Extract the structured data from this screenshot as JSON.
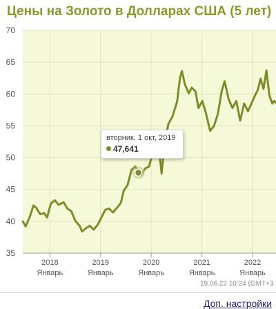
{
  "chart_data": {
    "type": "line",
    "title": "Цены на Золото в Долларах США (5 лет)",
    "y_ticks": [
      35,
      40,
      45,
      50,
      55,
      60,
      65,
      70
    ],
    "ylim": [
      35,
      70
    ],
    "x_ticks": [
      {
        "year": "2018",
        "month": "Январь",
        "date": "2018-01-01"
      },
      {
        "year": "2019",
        "month": "Январь",
        "date": "2019-01-01"
      },
      {
        "year": "2020",
        "month": "Январь",
        "date": "2020-01-01"
      },
      {
        "year": "2021",
        "month": "Январь",
        "date": "2021-01-01"
      },
      {
        "year": "2022",
        "month": "Январь",
        "date": "2022-01-01"
      }
    ],
    "xlim": [
      "2017-06-19",
      "2022-06-19"
    ],
    "grid": true,
    "line_color": "#7f8c2a",
    "plot_background": "#f6f9d8",
    "series": [
      {
        "points": [
          [
            "2017-06-19",
            40.0
          ],
          [
            "2017-07-10",
            39.2
          ],
          [
            "2017-08-07",
            40.6
          ],
          [
            "2017-09-04",
            42.5
          ],
          [
            "2017-09-25",
            42.1
          ],
          [
            "2017-10-23",
            41.1
          ],
          [
            "2017-11-20",
            41.3
          ],
          [
            "2017-12-11",
            40.6
          ],
          [
            "2018-01-08",
            42.8
          ],
          [
            "2018-02-05",
            43.3
          ],
          [
            "2018-03-05",
            42.6
          ],
          [
            "2018-04-09",
            43.0
          ],
          [
            "2018-05-07",
            42.0
          ],
          [
            "2018-06-04",
            41.6
          ],
          [
            "2018-07-02",
            40.1
          ],
          [
            "2018-08-06",
            39.2
          ],
          [
            "2018-08-20",
            38.4
          ],
          [
            "2018-09-17",
            38.9
          ],
          [
            "2018-10-15",
            39.3
          ],
          [
            "2018-11-12",
            38.7
          ],
          [
            "2018-12-10",
            39.4
          ],
          [
            "2019-01-07",
            40.6
          ],
          [
            "2019-02-04",
            41.8
          ],
          [
            "2019-03-04",
            42.0
          ],
          [
            "2019-04-01",
            41.4
          ],
          [
            "2019-05-06",
            42.3
          ],
          [
            "2019-05-27",
            42.9
          ],
          [
            "2019-06-17",
            44.8
          ],
          [
            "2019-07-15",
            45.7
          ],
          [
            "2019-08-12",
            48.1
          ],
          [
            "2019-09-09",
            48.6
          ],
          [
            "2019-10-01",
            47.641
          ],
          [
            "2019-10-21",
            47.2
          ],
          [
            "2019-11-18",
            48.3
          ],
          [
            "2019-12-16",
            48.6
          ],
          [
            "2020-01-13",
            50.8
          ],
          [
            "2020-02-10",
            51.3
          ],
          [
            "2020-02-24",
            51.9
          ],
          [
            "2020-03-16",
            47.5
          ],
          [
            "2020-04-06",
            52.1
          ],
          [
            "2020-05-04",
            55.3
          ],
          [
            "2020-06-01",
            56.4
          ],
          [
            "2020-07-06",
            58.8
          ],
          [
            "2020-07-27",
            62.6
          ],
          [
            "2020-08-10",
            63.6
          ],
          [
            "2020-08-31",
            61.5
          ],
          [
            "2020-09-28",
            60.1
          ],
          [
            "2020-10-19",
            61.0
          ],
          [
            "2020-11-16",
            60.4
          ],
          [
            "2020-12-07",
            57.8
          ],
          [
            "2021-01-04",
            58.9
          ],
          [
            "2021-02-01",
            56.8
          ],
          [
            "2021-03-01",
            54.2
          ],
          [
            "2021-03-29",
            55.0
          ],
          [
            "2021-04-26",
            56.9
          ],
          [
            "2021-05-24",
            60.5
          ],
          [
            "2021-06-14",
            62.0
          ],
          [
            "2021-07-12",
            59.2
          ],
          [
            "2021-08-09",
            57.8
          ],
          [
            "2021-09-06",
            58.9
          ],
          [
            "2021-10-04",
            55.8
          ],
          [
            "2021-11-01",
            58.5
          ],
          [
            "2021-11-29",
            57.3
          ],
          [
            "2021-12-20",
            58.3
          ],
          [
            "2022-01-17",
            59.7
          ],
          [
            "2022-02-07",
            60.6
          ],
          [
            "2022-02-28",
            62.4
          ],
          [
            "2022-03-21",
            60.8
          ],
          [
            "2022-04-11",
            63.7
          ],
          [
            "2022-05-02",
            59.8
          ],
          [
            "2022-05-23",
            58.5
          ],
          [
            "2022-06-06",
            58.9
          ],
          [
            "2022-06-19",
            58.6
          ]
        ]
      }
    ]
  },
  "tooltip": {
    "date": "вторник, 1 окт, 2019",
    "value": "47,641",
    "point": [
      "2019-10-01",
      47.641
    ]
  },
  "timestamp": "19.06.22 10:24 (GMT+3",
  "footer_link": "Доп. настройки"
}
